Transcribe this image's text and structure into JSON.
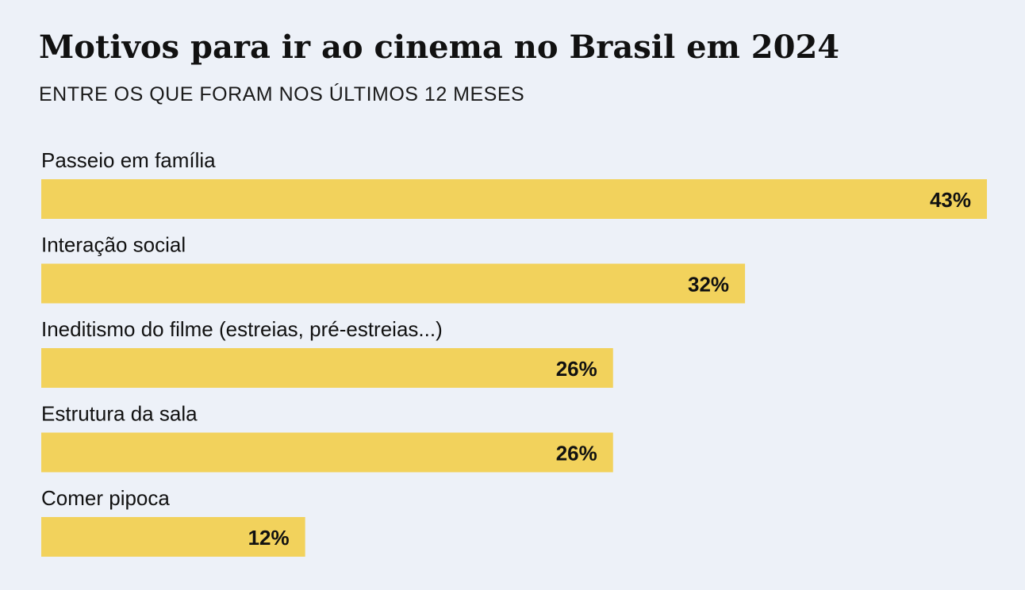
{
  "chart_data": {
    "type": "bar",
    "orientation": "horizontal",
    "title": "Motivos para ir ao cinema no Brasil em 2024",
    "subtitle": "ENTRE OS QUE FORAM NOS ÚLTIMOS 12 MESES",
    "categories": [
      "Passeio em família",
      "Interação social",
      "Ineditismo do filme (estreias, pré-estreias...)",
      "Estrutura da sala",
      "Comer pipoca"
    ],
    "values": [
      43,
      32,
      26,
      26,
      12
    ],
    "value_labels": [
      "43%",
      "32%",
      "26%",
      "26%",
      "12%"
    ],
    "xlim": [
      0,
      43
    ],
    "grid": false,
    "legend": "none",
    "colors": {
      "bar": "#f2d25c",
      "background": "#edf1f8",
      "text": "#111111"
    }
  }
}
